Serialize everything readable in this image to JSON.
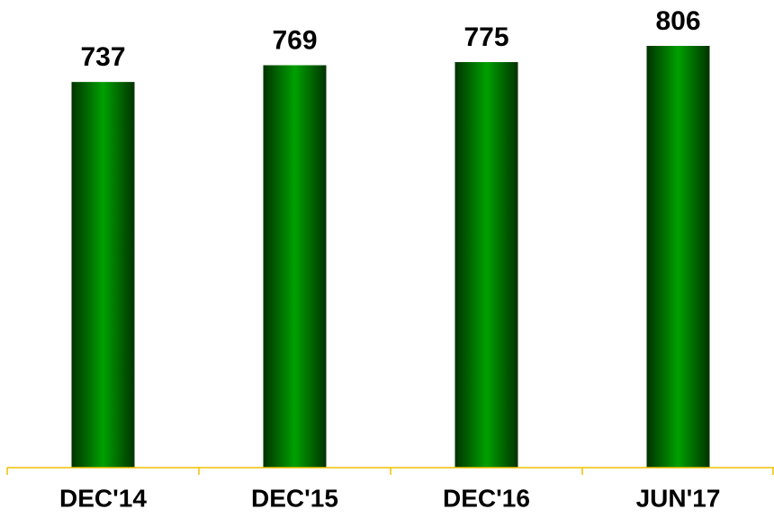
{
  "chart_data": {
    "type": "bar",
    "categories": [
      "DEC'14",
      "DEC'15",
      "DEC'16",
      "JUN'17"
    ],
    "values": [
      737,
      769,
      775,
      806
    ],
    "color": "#00a000"
  }
}
